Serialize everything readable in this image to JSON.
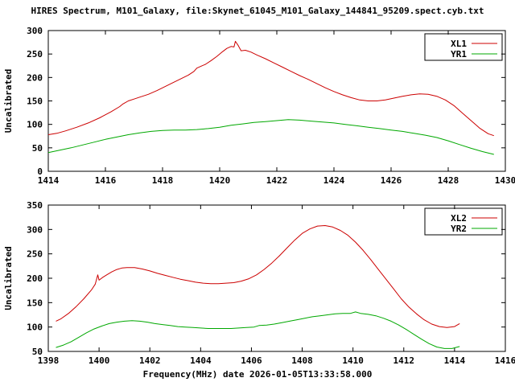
{
  "title": "HIRES Spectrum, M101_Galaxy, file:Skynet_61045_M101_Galaxy_144841_95209.spect.cyb.txt",
  "xlabel": "Frequency(MHz) date 2026-01-05T13:33:58.000",
  "chart_data": [
    {
      "type": "line",
      "ylabel": "Uncalibrated",
      "xlim": [
        1414,
        1430
      ],
      "ylim": [
        0,
        300
      ],
      "xticks": [
        1414,
        1416,
        1418,
        1420,
        1422,
        1424,
        1426,
        1428,
        1430
      ],
      "yticks": [
        0,
        50,
        100,
        150,
        200,
        250,
        300
      ],
      "legend_position": "top-right",
      "legend_box": true,
      "grid": false,
      "series": [
        {
          "name": "XL1",
          "color": "#cc0000",
          "points": [
            [
              1414.0,
              78
            ],
            [
              1414.3,
              81
            ],
            [
              1414.6,
              86
            ],
            [
              1415.0,
              94
            ],
            [
              1415.4,
              103
            ],
            [
              1415.8,
              114
            ],
            [
              1416.2,
              127
            ],
            [
              1416.5,
              138
            ],
            [
              1416.6,
              143
            ],
            [
              1416.8,
              150
            ],
            [
              1417.0,
              154
            ],
            [
              1417.2,
              158
            ],
            [
              1417.5,
              164
            ],
            [
              1417.8,
              172
            ],
            [
              1418.0,
              178
            ],
            [
              1418.3,
              187
            ],
            [
              1418.6,
              196
            ],
            [
              1418.9,
              205
            ],
            [
              1419.1,
              213
            ],
            [
              1419.2,
              220
            ],
            [
              1419.35,
              224
            ],
            [
              1419.5,
              228
            ],
            [
              1419.7,
              236
            ],
            [
              1419.9,
              245
            ],
            [
              1420.1,
              255
            ],
            [
              1420.25,
              262
            ],
            [
              1420.4,
              266
            ],
            [
              1420.5,
              265
            ],
            [
              1420.55,
              277
            ],
            [
              1420.65,
              268
            ],
            [
              1420.75,
              257
            ],
            [
              1420.9,
              258
            ],
            [
              1421.1,
              254
            ],
            [
              1421.3,
              248
            ],
            [
              1421.6,
              240
            ],
            [
              1421.9,
              231
            ],
            [
              1422.2,
              222
            ],
            [
              1422.5,
              213
            ],
            [
              1422.8,
              204
            ],
            [
              1423.1,
              196
            ],
            [
              1423.4,
              187
            ],
            [
              1423.7,
              178
            ],
            [
              1424.0,
              170
            ],
            [
              1424.3,
              163
            ],
            [
              1424.6,
              157
            ],
            [
              1424.9,
              152
            ],
            [
              1425.2,
              150
            ],
            [
              1425.5,
              150
            ],
            [
              1425.8,
              152
            ],
            [
              1426.1,
              156
            ],
            [
              1426.4,
              160
            ],
            [
              1426.7,
              163
            ],
            [
              1427.0,
              165
            ],
            [
              1427.3,
              164
            ],
            [
              1427.6,
              160
            ],
            [
              1427.9,
              152
            ],
            [
              1428.2,
              140
            ],
            [
              1428.5,
              124
            ],
            [
              1428.8,
              108
            ],
            [
              1429.1,
              92
            ],
            [
              1429.4,
              80
            ],
            [
              1429.6,
              76
            ]
          ]
        },
        {
          "name": "YR1",
          "color": "#00a800",
          "points": [
            [
              1414.0,
              40
            ],
            [
              1414.4,
              45
            ],
            [
              1414.8,
              50
            ],
            [
              1415.2,
              56
            ],
            [
              1415.6,
              62
            ],
            [
              1416.0,
              68
            ],
            [
              1416.4,
              73
            ],
            [
              1416.8,
              78
            ],
            [
              1417.2,
              82
            ],
            [
              1417.6,
              85
            ],
            [
              1418.0,
              87
            ],
            [
              1418.4,
              88
            ],
            [
              1418.8,
              88
            ],
            [
              1419.2,
              89
            ],
            [
              1419.6,
              91
            ],
            [
              1420.0,
              94
            ],
            [
              1420.4,
              98
            ],
            [
              1420.8,
              101
            ],
            [
              1421.2,
              104
            ],
            [
              1421.6,
              106
            ],
            [
              1422.0,
              108
            ],
            [
              1422.4,
              110
            ],
            [
              1422.8,
              109
            ],
            [
              1423.2,
              107
            ],
            [
              1423.6,
              105
            ],
            [
              1424.0,
              103
            ],
            [
              1424.4,
              100
            ],
            [
              1424.8,
              97
            ],
            [
              1425.2,
              94
            ],
            [
              1425.6,
              91
            ],
            [
              1426.0,
              88
            ],
            [
              1426.4,
              85
            ],
            [
              1426.8,
              81
            ],
            [
              1427.2,
              77
            ],
            [
              1427.6,
              72
            ],
            [
              1428.0,
              65
            ],
            [
              1428.4,
              57
            ],
            [
              1428.8,
              49
            ],
            [
              1429.2,
              42
            ],
            [
              1429.6,
              36
            ]
          ]
        }
      ]
    },
    {
      "type": "line",
      "ylabel": "Uncalibrated",
      "xlim": [
        1398,
        1416
      ],
      "ylim": [
        50,
        350
      ],
      "xticks": [
        1398,
        1400,
        1402,
        1404,
        1406,
        1408,
        1410,
        1412,
        1414,
        1416
      ],
      "yticks": [
        50,
        100,
        150,
        200,
        250,
        300,
        350
      ],
      "legend_position": "top-right",
      "legend_box": true,
      "grid": false,
      "series": [
        {
          "name": "XL2",
          "color": "#cc0000",
          "points": [
            [
              1398.3,
              112
            ],
            [
              1398.5,
              117
            ],
            [
              1398.8,
              128
            ],
            [
              1399.1,
              142
            ],
            [
              1399.4,
              158
            ],
            [
              1399.7,
              176
            ],
            [
              1399.85,
              188
            ],
            [
              1399.95,
              207
            ],
            [
              1400.0,
              196
            ],
            [
              1400.15,
              202
            ],
            [
              1400.3,
              207
            ],
            [
              1400.5,
              213
            ],
            [
              1400.7,
              218
            ],
            [
              1400.9,
              221
            ],
            [
              1401.1,
              222
            ],
            [
              1401.4,
              222
            ],
            [
              1401.7,
              219
            ],
            [
              1402.0,
              215
            ],
            [
              1402.3,
              210
            ],
            [
              1402.6,
              206
            ],
            [
              1402.9,
              202
            ],
            [
              1403.2,
              198
            ],
            [
              1403.5,
              195
            ],
            [
              1403.8,
              192
            ],
            [
              1404.1,
              190
            ],
            [
              1404.4,
              189
            ],
            [
              1404.7,
              189
            ],
            [
              1405.0,
              190
            ],
            [
              1405.3,
              191
            ],
            [
              1405.6,
              194
            ],
            [
              1405.9,
              199
            ],
            [
              1406.2,
              207
            ],
            [
              1406.5,
              218
            ],
            [
              1406.8,
              231
            ],
            [
              1407.1,
              246
            ],
            [
              1407.4,
              262
            ],
            [
              1407.7,
              278
            ],
            [
              1408.0,
              292
            ],
            [
              1408.3,
              301
            ],
            [
              1408.6,
              307
            ],
            [
              1408.9,
              308
            ],
            [
              1409.2,
              305
            ],
            [
              1409.5,
              298
            ],
            [
              1409.8,
              288
            ],
            [
              1410.1,
              274
            ],
            [
              1410.4,
              257
            ],
            [
              1410.7,
              238
            ],
            [
              1411.0,
              218
            ],
            [
              1411.3,
              198
            ],
            [
              1411.6,
              178
            ],
            [
              1411.9,
              158
            ],
            [
              1412.2,
              141
            ],
            [
              1412.5,
              127
            ],
            [
              1412.8,
              115
            ],
            [
              1413.1,
              106
            ],
            [
              1413.4,
              101
            ],
            [
              1413.7,
              99
            ],
            [
              1414.0,
              101
            ],
            [
              1414.2,
              107
            ]
          ]
        },
        {
          "name": "YR2",
          "color": "#00a800",
          "points": [
            [
              1398.3,
              58
            ],
            [
              1398.6,
              63
            ],
            [
              1398.9,
              70
            ],
            [
              1399.2,
              79
            ],
            [
              1399.5,
              88
            ],
            [
              1399.8,
              96
            ],
            [
              1400.1,
              102
            ],
            [
              1400.4,
              107
            ],
            [
              1400.7,
              110
            ],
            [
              1401.0,
              112
            ],
            [
              1401.3,
              113
            ],
            [
              1401.6,
              112
            ],
            [
              1401.9,
              110
            ],
            [
              1402.2,
              107
            ],
            [
              1402.5,
              105
            ],
            [
              1402.8,
              103
            ],
            [
              1403.1,
              101
            ],
            [
              1403.4,
              100
            ],
            [
              1403.7,
              99
            ],
            [
              1404.0,
              98
            ],
            [
              1404.3,
              97
            ],
            [
              1404.6,
              97
            ],
            [
              1404.9,
              97
            ],
            [
              1405.2,
              97
            ],
            [
              1405.5,
              98
            ],
            [
              1405.8,
              99
            ],
            [
              1406.1,
              100
            ],
            [
              1406.3,
              103
            ],
            [
              1406.6,
              104
            ],
            [
              1406.9,
              106
            ],
            [
              1407.2,
              109
            ],
            [
              1407.5,
              112
            ],
            [
              1407.8,
              115
            ],
            [
              1408.1,
              118
            ],
            [
              1408.4,
              121
            ],
            [
              1408.7,
              123
            ],
            [
              1409.0,
              125
            ],
            [
              1409.3,
              127
            ],
            [
              1409.6,
              128
            ],
            [
              1409.9,
              128
            ],
            [
              1410.1,
              131
            ],
            [
              1410.3,
              128
            ],
            [
              1410.6,
              126
            ],
            [
              1410.9,
              123
            ],
            [
              1411.2,
              118
            ],
            [
              1411.5,
              112
            ],
            [
              1411.8,
              104
            ],
            [
              1412.1,
              95
            ],
            [
              1412.4,
              85
            ],
            [
              1412.7,
              75
            ],
            [
              1413.0,
              66
            ],
            [
              1413.3,
              59
            ],
            [
              1413.6,
              56
            ],
            [
              1413.9,
              56
            ],
            [
              1414.2,
              60
            ]
          ]
        }
      ]
    }
  ]
}
